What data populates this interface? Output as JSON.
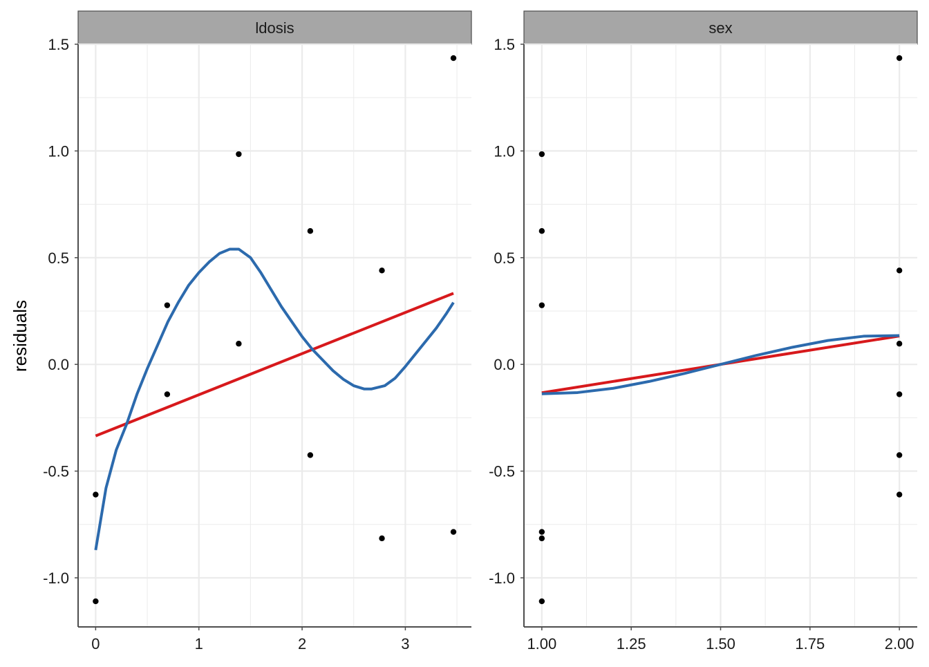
{
  "chart_data": {
    "type": "scatter",
    "ylabel": "residuals",
    "shared_y": {
      "ylim": [
        -1.23,
        1.5
      ],
      "ticks": [
        -1.0,
        -0.5,
        0.0,
        0.5,
        1.0,
        1.5
      ],
      "tick_labels": [
        "-1.0",
        "-0.5",
        "0.0",
        "0.5",
        "1.0",
        "1.5"
      ]
    },
    "grid": true,
    "colors": {
      "points": "#000000",
      "linear_fit": "#d7191c",
      "smooth_fit": "#2c6aad",
      "strip_fill": "#a6a6a6",
      "grid": "#ebebeb"
    },
    "panels": [
      {
        "strip": "ldosis",
        "xlim": [
          -0.17,
          3.64
        ],
        "xticks": [
          0,
          1,
          2,
          3
        ],
        "xtick_labels": [
          "0",
          "1",
          "2",
          "3"
        ],
        "points": [
          [
            0,
            -0.61
          ],
          [
            0,
            -1.11
          ],
          [
            0.693,
            0.277
          ],
          [
            0.693,
            -0.14
          ],
          [
            1.386,
            0.985
          ],
          [
            1.386,
            0.097
          ],
          [
            2.079,
            0.625
          ],
          [
            2.079,
            -0.425
          ],
          [
            2.773,
            0.44
          ],
          [
            2.773,
            -0.815
          ],
          [
            3.466,
            1.435
          ],
          [
            3.466,
            -0.785
          ]
        ],
        "linear_fit": [
          [
            0,
            -0.335
          ],
          [
            3.466,
            0.333
          ]
        ],
        "smooth_fit": [
          [
            0,
            -0.87
          ],
          [
            0.1,
            -0.58
          ],
          [
            0.2,
            -0.4
          ],
          [
            0.3,
            -0.28
          ],
          [
            0.4,
            -0.14
          ],
          [
            0.5,
            -0.02
          ],
          [
            0.6,
            0.09
          ],
          [
            0.7,
            0.2
          ],
          [
            0.8,
            0.29
          ],
          [
            0.9,
            0.37
          ],
          [
            1.0,
            0.43
          ],
          [
            1.1,
            0.48
          ],
          [
            1.2,
            0.52
          ],
          [
            1.3,
            0.54
          ],
          [
            1.386,
            0.54
          ],
          [
            1.5,
            0.5
          ],
          [
            1.6,
            0.43
          ],
          [
            1.7,
            0.35
          ],
          [
            1.8,
            0.27
          ],
          [
            1.9,
            0.2
          ],
          [
            2.0,
            0.13
          ],
          [
            2.1,
            0.07
          ],
          [
            2.2,
            0.02
          ],
          [
            2.3,
            -0.03
          ],
          [
            2.4,
            -0.07
          ],
          [
            2.5,
            -0.1
          ],
          [
            2.6,
            -0.115
          ],
          [
            2.673,
            -0.115
          ],
          [
            2.8,
            -0.1
          ],
          [
            2.9,
            -0.065
          ],
          [
            3.0,
            -0.01
          ],
          [
            3.1,
            0.05
          ],
          [
            3.2,
            0.11
          ],
          [
            3.3,
            0.17
          ],
          [
            3.4,
            0.24
          ],
          [
            3.466,
            0.29
          ]
        ]
      },
      {
        "strip": "sex",
        "xlim": [
          0.95,
          2.05
        ],
        "xticks": [
          1.0,
          1.25,
          1.5,
          1.75,
          2.0
        ],
        "xtick_labels": [
          "1.00",
          "1.25",
          "1.50",
          "1.75",
          "2.00"
        ],
        "points": [
          [
            1,
            0.985
          ],
          [
            1,
            0.625
          ],
          [
            1,
            0.277
          ],
          [
            1,
            -0.785
          ],
          [
            1,
            -0.815
          ],
          [
            1,
            -1.11
          ],
          [
            2,
            1.435
          ],
          [
            2,
            0.44
          ],
          [
            2,
            0.097
          ],
          [
            2,
            -0.14
          ],
          [
            2,
            -0.425
          ],
          [
            2,
            -0.61
          ]
        ],
        "linear_fit": [
          [
            1.0,
            -0.133
          ],
          [
            2.0,
            0.133
          ]
        ],
        "smooth_fit": [
          [
            1.0,
            -0.138
          ],
          [
            1.1,
            -0.132
          ],
          [
            1.2,
            -0.112
          ],
          [
            1.3,
            -0.08
          ],
          [
            1.4,
            -0.042
          ],
          [
            1.5,
            0.0
          ],
          [
            1.6,
            0.042
          ],
          [
            1.7,
            0.08
          ],
          [
            1.8,
            0.112
          ],
          [
            1.9,
            0.132
          ],
          [
            2.0,
            0.135
          ]
        ]
      }
    ]
  }
}
